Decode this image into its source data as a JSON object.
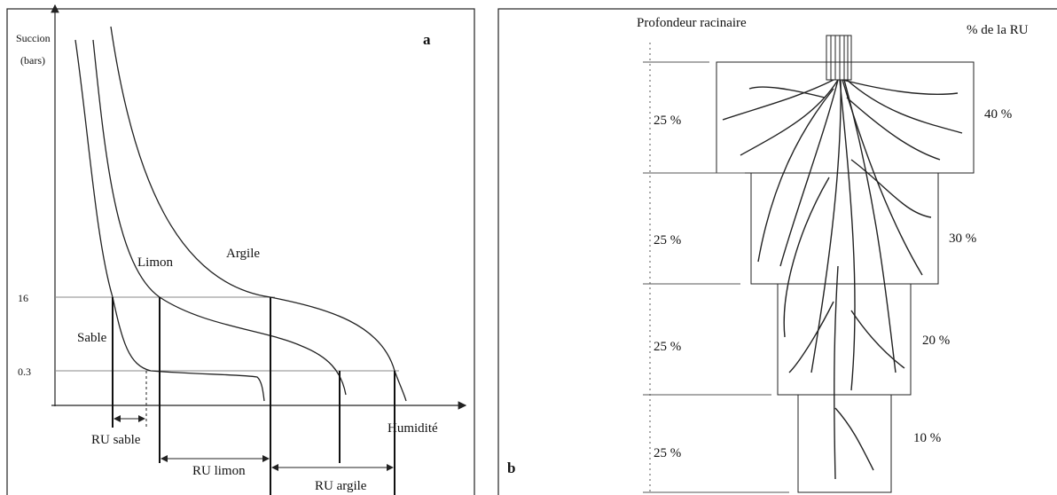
{
  "panel_a": {
    "label": "a",
    "y_axis_label": [
      "Succion",
      "(bars)"
    ],
    "y_ticks": [
      "16",
      "0.3"
    ],
    "x_axis_label": "Humidité",
    "curves": [
      "Sable",
      "Limon",
      "Argile"
    ],
    "ranges": [
      "RU sable",
      "RU limon",
      "RU argile"
    ]
  },
  "panel_b": {
    "label": "b",
    "depth_header": "Profondeur racinaire",
    "share_header": "% de la RU",
    "layers": [
      {
        "depth": "25 %",
        "share": "40 %"
      },
      {
        "depth": "25 %",
        "share": "30 %"
      },
      {
        "depth": "25 %",
        "share": "20 %"
      },
      {
        "depth": "25 %",
        "share": "10 %"
      }
    ]
  }
}
